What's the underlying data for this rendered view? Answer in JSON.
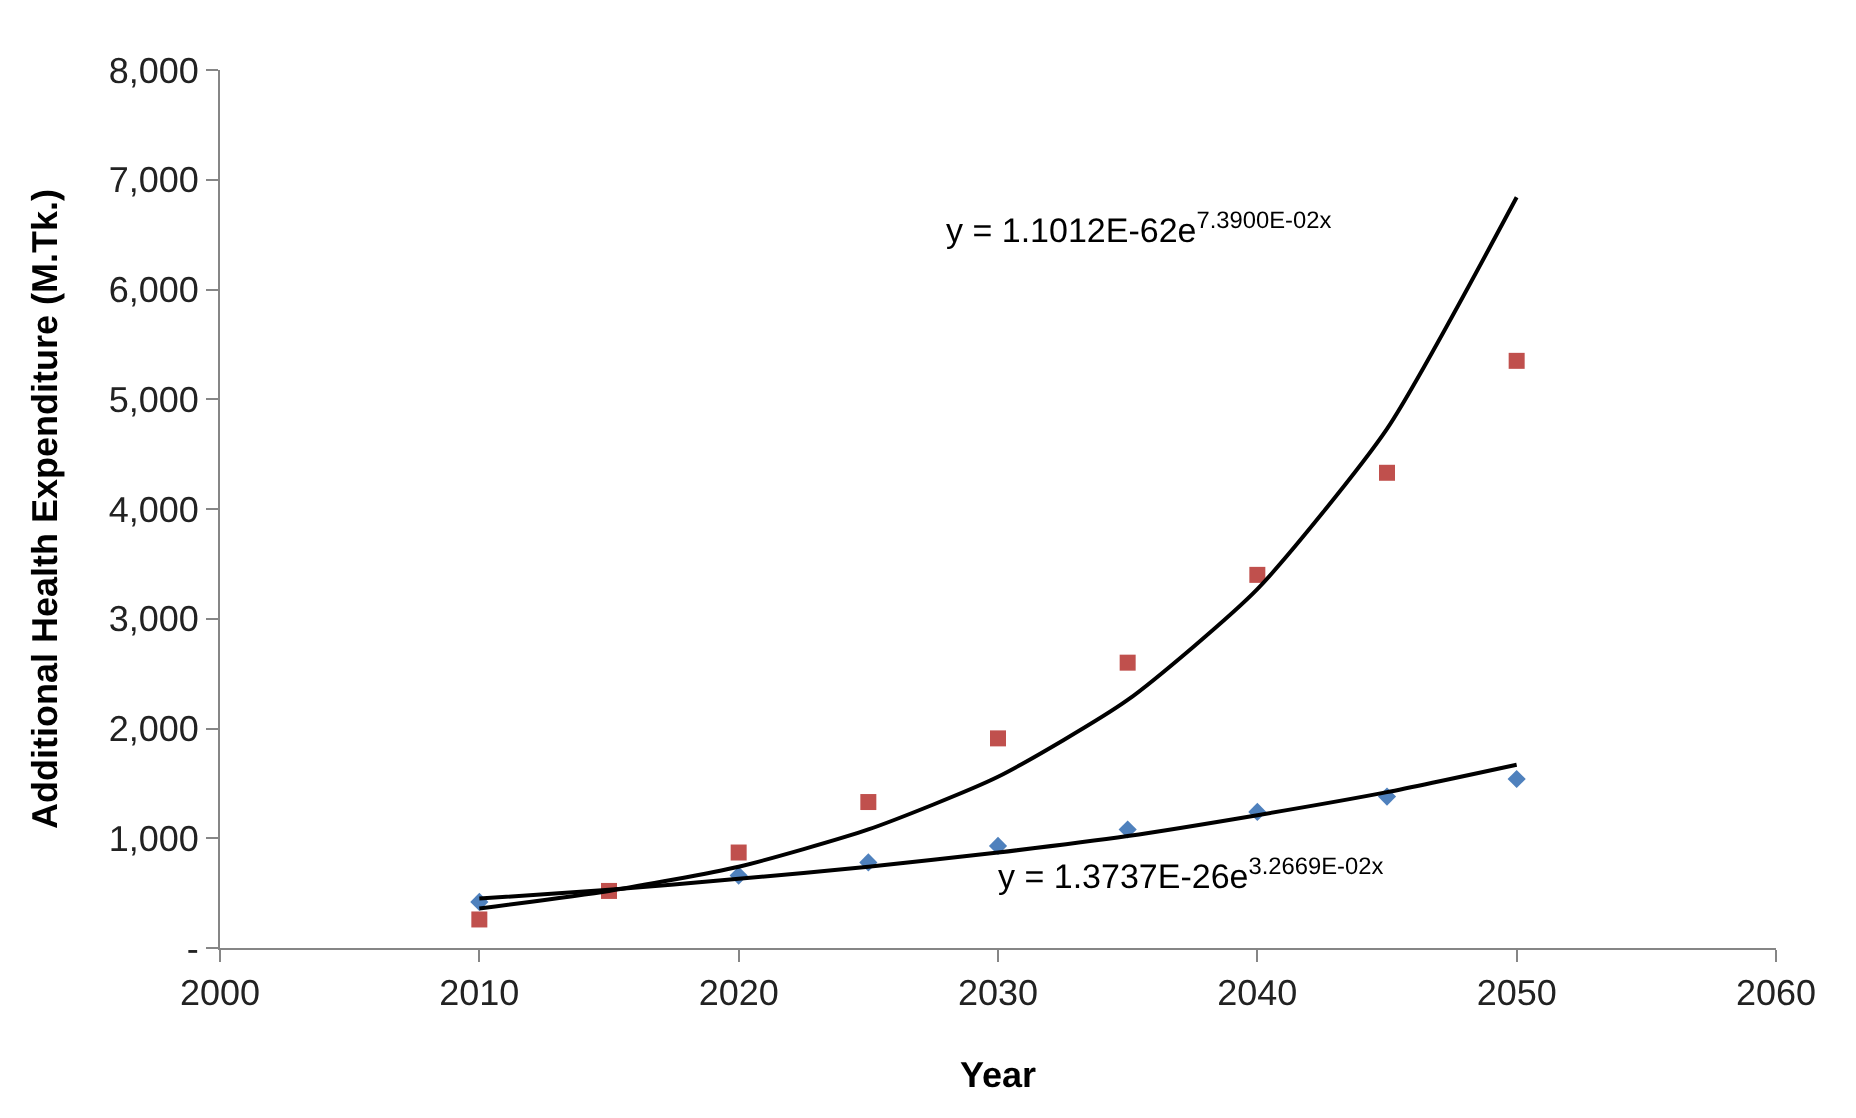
{
  "chart_data": {
    "type": "scatter",
    "xlabel": "Year",
    "ylabel": "Additional Health Expenditure (M.Tk.)",
    "x": [
      2010,
      2015,
      2020,
      2025,
      2030,
      2035,
      2040,
      2045,
      2050
    ],
    "series": [
      {
        "color": "#c0504d",
        "marker": "square",
        "values": [
          260,
          520,
          870,
          1330,
          1910,
          2600,
          3400,
          4330,
          5350
        ]
      },
      {
        "color": "#4f81bd",
        "marker": "diamond",
        "values": [
          420,
          null,
          660,
          780,
          930,
          1080,
          1240,
          1380,
          1540
        ]
      },
      {
        "type": "line",
        "color": "#000000",
        "marker": "none",
        "x": [
          2010,
          2015,
          2020,
          2025,
          2030,
          2035,
          2040,
          2045,
          2050
        ],
        "values": [
          360,
          520,
          740,
          1080,
          1560,
          2260,
          3270,
          4730,
          6840
        ]
      },
      {
        "type": "line",
        "color": "#000000",
        "marker": "none",
        "x": [
          2010,
          2015,
          2020,
          2025,
          2030,
          2035,
          2040,
          2045,
          2050
        ],
        "values": [
          450,
          530,
          630,
          740,
          870,
          1020,
          1210,
          1420,
          1670
        ]
      }
    ],
    "annotations": [
      "y = 1.1012E-62e$^{7.3900E-02x}$",
      "y = 1.3737E-26e$^{3.2669E-02x}$"
    ],
    "xlim": [
      2000,
      2060
    ],
    "xticks": [
      2000,
      2010,
      2020,
      2030,
      2040,
      2050,
      2060
    ],
    "ylim": [
      0,
      8000
    ],
    "yticks": [
      {
        "value": 0,
        "label": "-"
      },
      {
        "value": 1000,
        "label": "1,000"
      },
      {
        "value": 2000,
        "label": "2,000"
      },
      {
        "value": 3000,
        "label": "3,000"
      },
      {
        "value": 4000,
        "label": "4,000"
      },
      {
        "value": 5000,
        "label": "5,000"
      },
      {
        "value": 6000,
        "label": "6,000"
      },
      {
        "value": 7000,
        "label": "7,000"
      },
      {
        "value": 8000,
        "label": "8,000"
      }
    ],
    "tick_labels": true
  }
}
